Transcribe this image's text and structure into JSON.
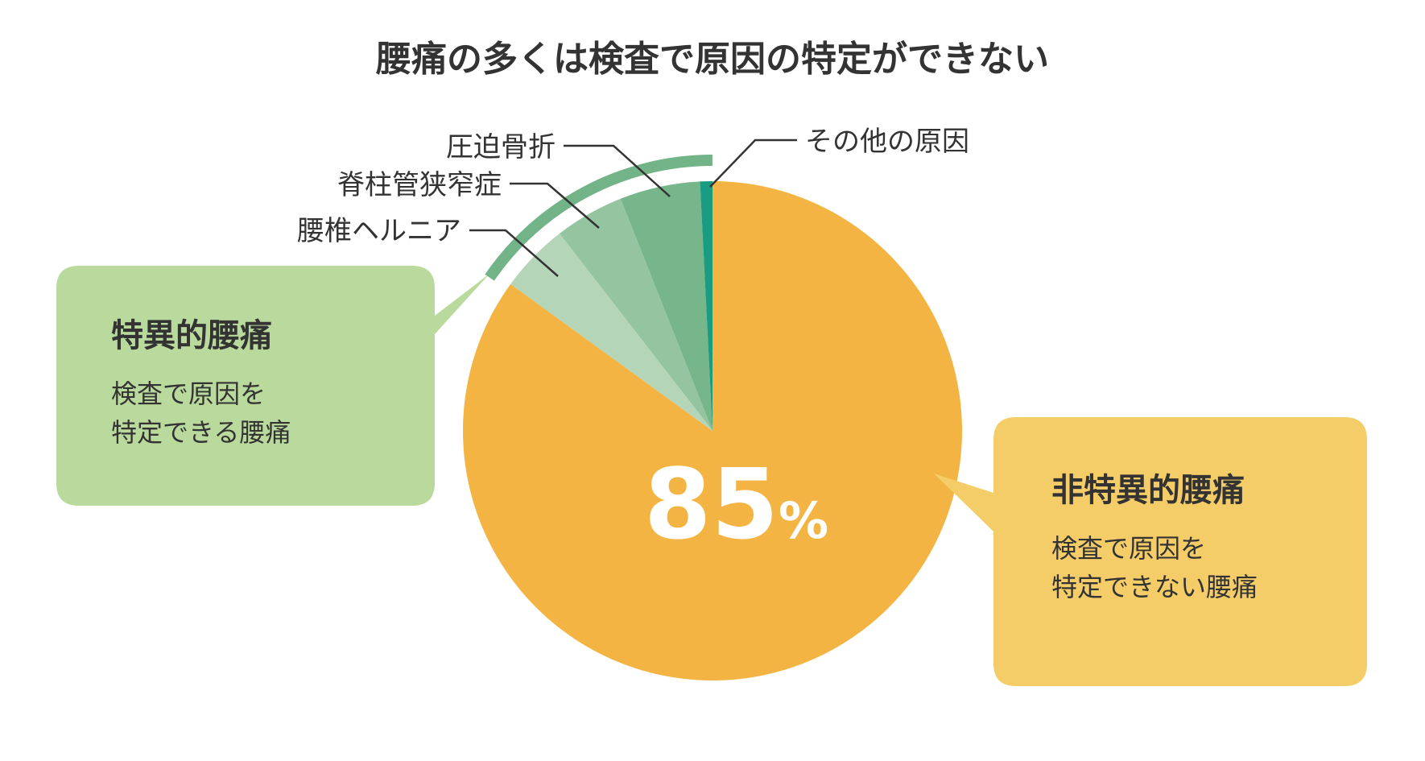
{
  "chart_data": {
    "type": "pie",
    "title": "腰痛の多くは検査で原因の特定ができない",
    "slices": [
      {
        "label": "",
        "value": 85,
        "color": "#f3b443"
      },
      {
        "label": "腰椎ヘルニア",
        "value": 4.5,
        "color": "#b4d5b8"
      },
      {
        "label": "脊柱管狭窄症",
        "value": 4.5,
        "color": "#95c4a0"
      },
      {
        "label": "圧迫骨折",
        "value": 5.2,
        "color": "#76b68a"
      },
      {
        "label": "その他の原因",
        "value": 0.8,
        "color": "#1a9c82"
      }
    ],
    "main_value_label": "85",
    "main_value_unit": "%",
    "groups": [
      {
        "name": "特異的腰痛",
        "description_lines": [
          "検査で原因を",
          "特定できる腰痛"
        ],
        "color": "#b9da9c"
      },
      {
        "name": "非特異的腰痛",
        "description_lines": [
          "検査で原因を",
          "特定できない腰痛"
        ],
        "color": "#f4cd68"
      }
    ],
    "bracket_color": "#72b487",
    "leader_color": "#333333"
  }
}
